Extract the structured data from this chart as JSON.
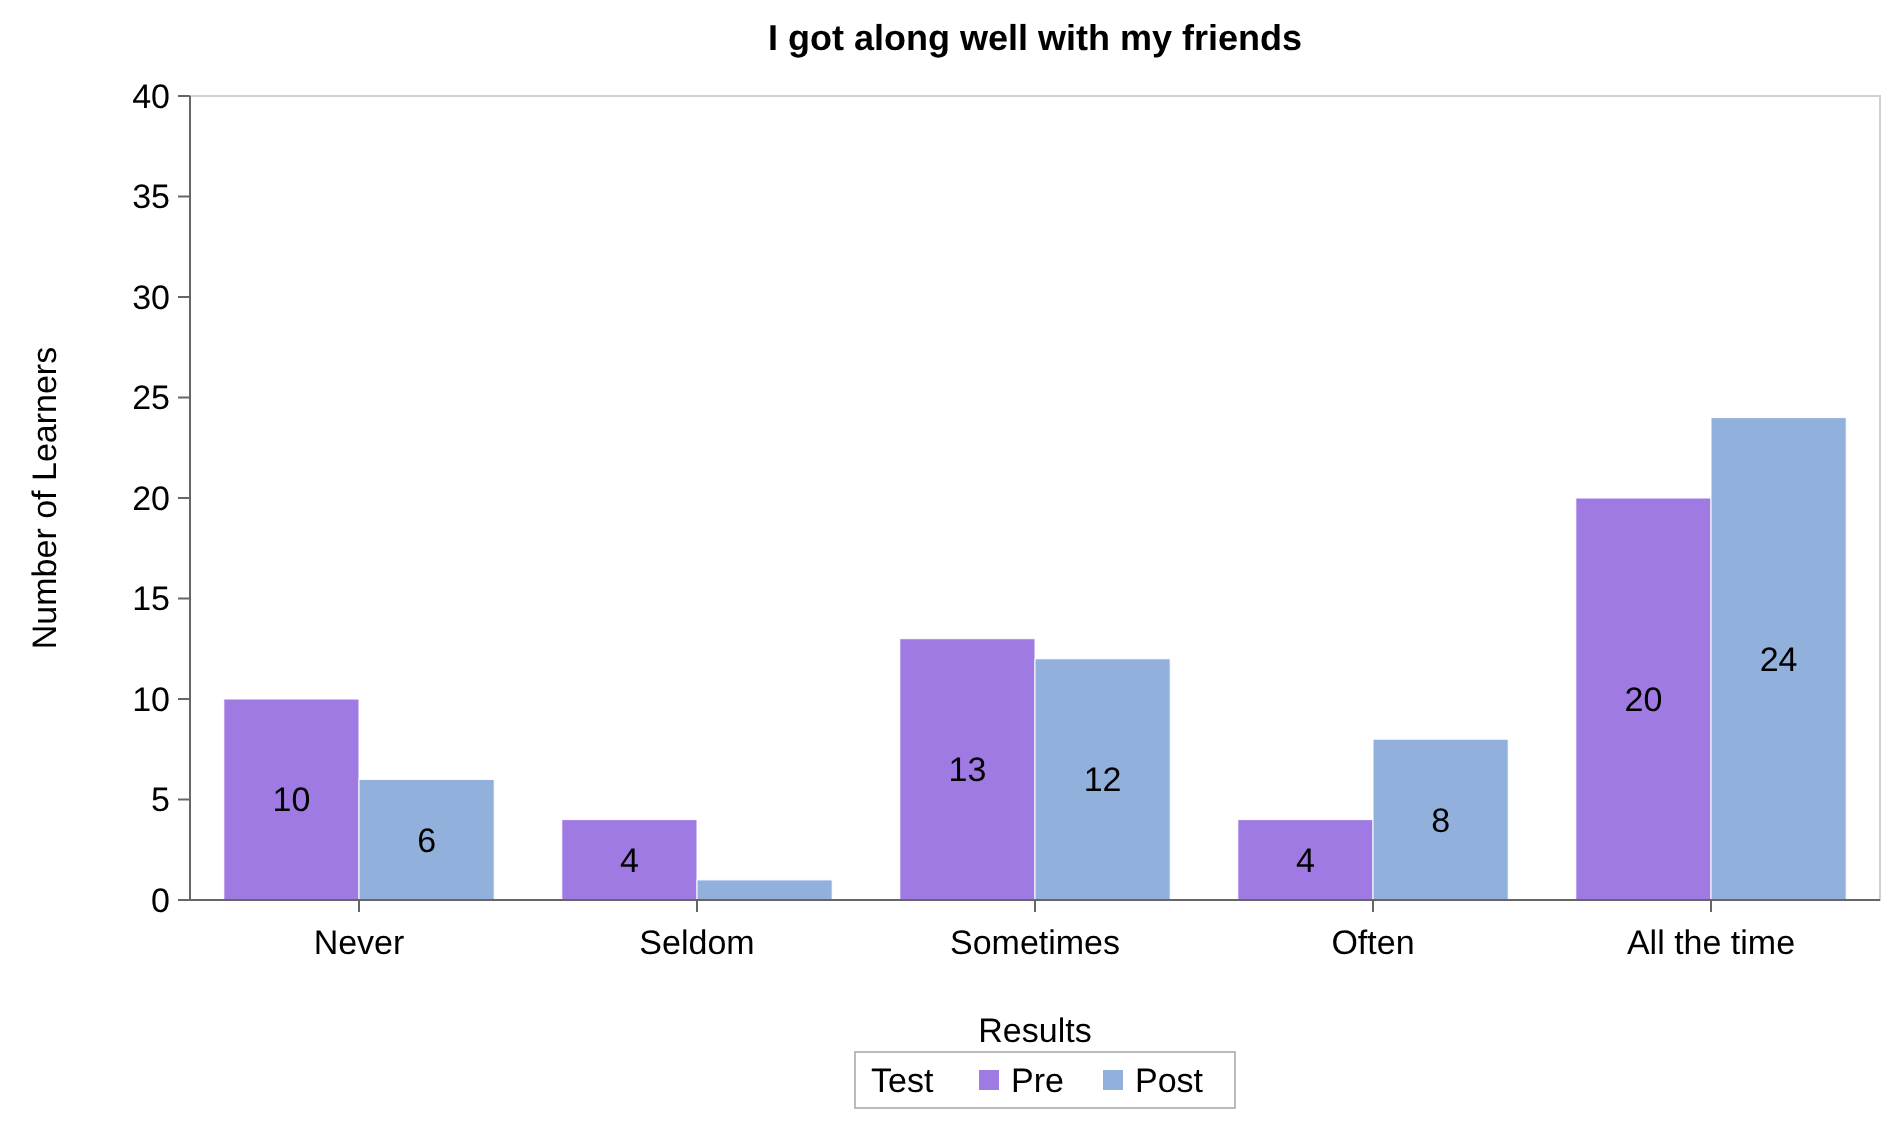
{
  "chart_data": {
    "type": "bar",
    "title": "I got along well with my friends",
    "xlabel": "Results",
    "ylabel": "Number of Learners",
    "legend_title": "Test",
    "legend": "bottom",
    "categories": [
      "Never",
      "Seldom",
      "Sometimes",
      "Often",
      "All the time"
    ],
    "series": [
      {
        "name": "Pre",
        "color": "#a07ae3",
        "values": [
          10,
          4,
          13,
          4,
          20
        ],
        "value_labels": [
          "10",
          "4",
          "13",
          "4",
          "20"
        ]
      },
      {
        "name": "Post",
        "color": "#92b0dc",
        "values": [
          6,
          1,
          12,
          8,
          24
        ],
        "value_labels": [
          "6",
          null,
          "12",
          "8",
          "24"
        ]
      }
    ],
    "ylim": [
      0,
      40
    ],
    "yticks": [
      0,
      5,
      10,
      15,
      20,
      25,
      30,
      35,
      40
    ],
    "grid": false
  }
}
